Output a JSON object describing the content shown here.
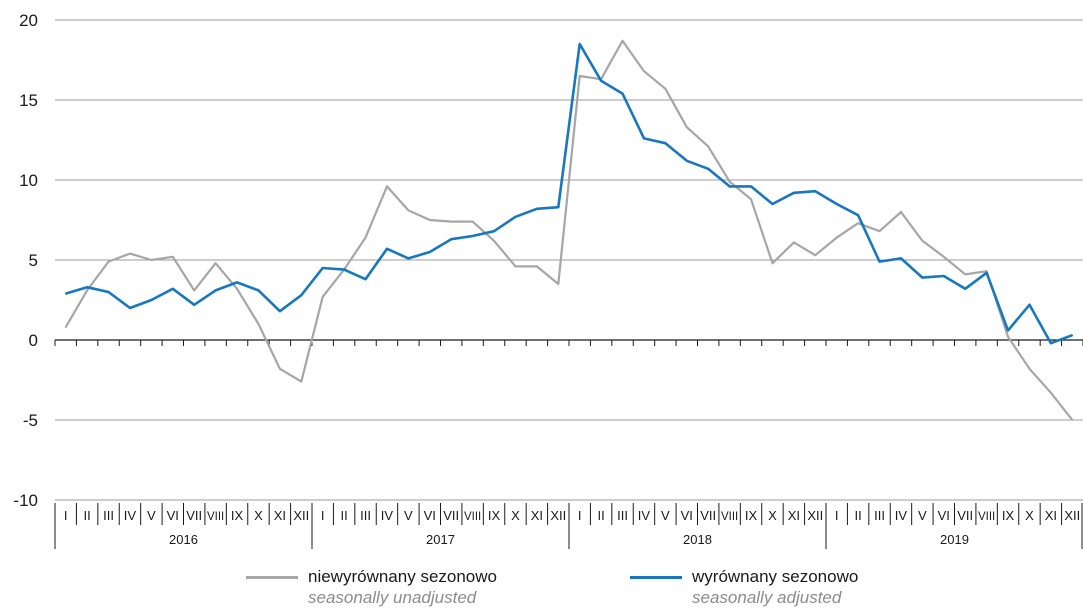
{
  "chart_data": {
    "type": "line",
    "title": "",
    "xlabel": "",
    "ylabel": "",
    "ylim": [
      -10,
      20
    ],
    "yticks": [
      20,
      15,
      10,
      5,
      0,
      -5,
      -10
    ],
    "grid": true,
    "years": [
      "2016",
      "2017",
      "2018",
      "2019"
    ],
    "months": [
      "I",
      "II",
      "III",
      "IV",
      "V",
      "VI",
      "VII",
      "VIII",
      "IX",
      "X",
      "XI",
      "XII"
    ],
    "series": [
      {
        "name": "niewyrównany sezonowo",
        "name_en": "seasonally unadjusted",
        "color": "#a6a6a6",
        "values": [
          0.8,
          3.1,
          4.9,
          5.4,
          5.0,
          5.2,
          3.1,
          4.8,
          3.2,
          1.0,
          -1.8,
          -2.6,
          2.7,
          4.4,
          6.4,
          9.6,
          8.1,
          7.5,
          7.4,
          7.4,
          6.2,
          4.6,
          4.6,
          3.5,
          16.5,
          16.3,
          18.7,
          16.8,
          15.7,
          13.3,
          12.1,
          9.9,
          8.8,
          4.8,
          6.1,
          5.3,
          6.4,
          7.3,
          6.8,
          8.0,
          6.2,
          5.2,
          4.1,
          4.3,
          0.2,
          -1.8,
          -3.3,
          -5.0
        ]
      },
      {
        "name": "wyrównany sezonowo",
        "name_en": "seasonally adjusted",
        "color": "#1777bf",
        "values": [
          2.9,
          3.3,
          3.0,
          2.0,
          2.5,
          3.2,
          2.2,
          3.1,
          3.6,
          3.1,
          1.8,
          2.8,
          4.5,
          4.4,
          3.8,
          5.7,
          5.1,
          5.5,
          6.3,
          6.5,
          6.8,
          7.7,
          8.2,
          8.3,
          18.5,
          16.2,
          15.4,
          12.6,
          12.3,
          11.2,
          10.7,
          9.6,
          9.6,
          8.5,
          9.2,
          9.3,
          8.5,
          7.8,
          4.9,
          5.1,
          3.9,
          4.0,
          3.2,
          4.2,
          0.6,
          2.2,
          -0.2,
          0.3
        ]
      }
    ]
  }
}
